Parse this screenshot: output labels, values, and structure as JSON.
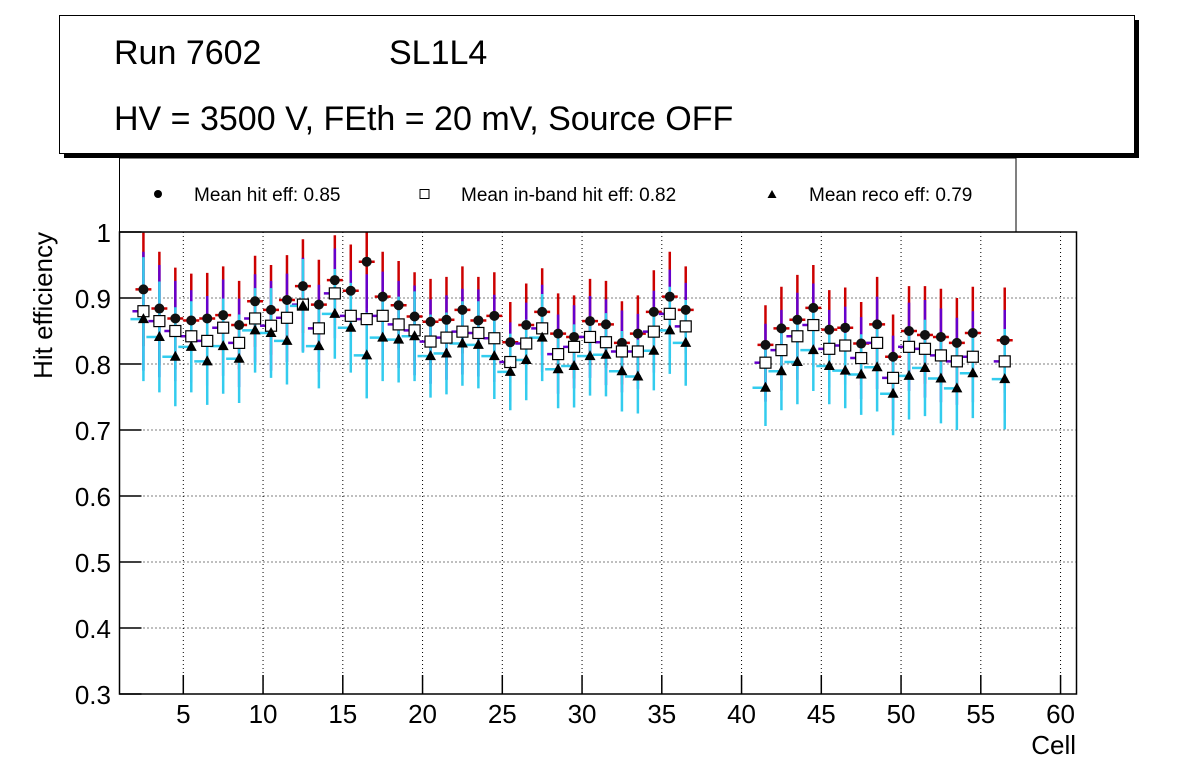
{
  "title_box": {
    "run_label": "Run 7602",
    "layer_label": "SL1L4",
    "conditions": "HV = 3500 V, FEth = 20 mV, Source OFF"
  },
  "legend": {
    "entries": [
      {
        "marker": "filled-circle",
        "label": "Mean hit  eff: 0.85"
      },
      {
        "marker": "open-square",
        "label": "Mean in-band hit eff: 0.82"
      },
      {
        "marker": "filled-triangle",
        "label": "Mean reco eff: 0.79"
      }
    ]
  },
  "chart_data": {
    "type": "scatter",
    "title": "Run 7602 SL1L4 — HV = 3500 V, FEth = 20 mV, Source OFF",
    "xlabel": "Cell",
    "ylabel": "Hit efficiency",
    "xlim": [
      1,
      61
    ],
    "ylim": [
      0.3,
      1.0
    ],
    "xticks": [
      5,
      10,
      15,
      20,
      25,
      30,
      35,
      40,
      45,
      50,
      55,
      60
    ],
    "yticks": [
      0.3,
      0.4,
      0.5,
      0.6,
      0.7,
      0.8,
      0.9,
      1.0
    ],
    "ytick_labels": [
      "0.3",
      "0.4",
      "0.5",
      "0.6",
      "0.7",
      "0.8",
      "0.9",
      "1"
    ],
    "grid": true,
    "legend_position": "top",
    "x_offset_note": "points plotted at cell + 0.5",
    "x": [
      2,
      3,
      4,
      5,
      6,
      7,
      8,
      9,
      10,
      11,
      12,
      13,
      14,
      15,
      16,
      17,
      18,
      19,
      20,
      21,
      22,
      23,
      24,
      25,
      26,
      27,
      28,
      29,
      30,
      31,
      32,
      33,
      34,
      35,
      36,
      41,
      42,
      43,
      44,
      45,
      46,
      47,
      48,
      49,
      50,
      51,
      52,
      53,
      54,
      56
    ],
    "series": [
      {
        "name": "Mean hit  eff: 0.85",
        "marker": "filled-circle",
        "color": "#cc0000",
        "values": [
          0.913,
          0.884,
          0.869,
          0.866,
          0.869,
          0.874,
          0.859,
          0.895,
          0.882,
          0.897,
          0.918,
          0.89,
          0.927,
          0.911,
          0.955,
          0.902,
          0.889,
          0.872,
          0.864,
          0.867,
          0.882,
          0.866,
          0.873,
          0.833,
          0.859,
          0.879,
          0.846,
          0.841,
          0.865,
          0.86,
          0.832,
          0.846,
          0.879,
          0.902,
          0.882,
          0.829,
          0.854,
          0.867,
          0.885,
          0.852,
          0.855,
          0.831,
          0.86,
          0.811,
          0.85,
          0.844,
          0.841,
          0.832,
          0.847,
          0.836
        ],
        "errors": [
          0.086,
          0.086,
          0.077,
          0.071,
          0.069,
          0.074,
          0.067,
          0.069,
          0.068,
          0.068,
          0.071,
          0.068,
          0.068,
          0.07,
          0.07,
          0.068,
          0.067,
          0.067,
          0.065,
          0.065,
          0.066,
          0.066,
          0.066,
          0.061,
          0.063,
          0.066,
          0.061,
          0.063,
          0.064,
          0.066,
          0.063,
          0.058,
          0.063,
          0.068,
          0.066,
          0.06,
          0.063,
          0.068,
          0.065,
          0.06,
          0.061,
          0.063,
          0.072,
          0.064,
          0.068,
          0.074,
          0.073,
          0.068,
          0.07,
          0.08
        ]
      },
      {
        "name": "Mean in-band hit eff: 0.82",
        "marker": "open-square",
        "color": "#6600cc",
        "values": [
          0.88,
          0.865,
          0.85,
          0.842,
          0.835,
          0.855,
          0.832,
          0.869,
          0.858,
          0.87,
          0.89,
          0.854,
          0.907,
          0.873,
          0.868,
          0.873,
          0.86,
          0.851,
          0.834,
          0.84,
          0.849,
          0.847,
          0.839,
          0.803,
          0.831,
          0.854,
          0.815,
          0.826,
          0.841,
          0.833,
          0.819,
          0.819,
          0.849,
          0.876,
          0.857,
          0.802,
          0.821,
          0.842,
          0.859,
          0.823,
          0.828,
          0.809,
          0.832,
          0.779,
          0.826,
          0.823,
          0.813,
          0.804,
          0.811,
          0.804
        ],
        "errors": [
          0.09,
          0.085,
          0.076,
          0.07,
          0.068,
          0.073,
          0.067,
          0.067,
          0.068,
          0.067,
          0.071,
          0.066,
          0.068,
          0.069,
          0.068,
          0.067,
          0.066,
          0.068,
          0.064,
          0.064,
          0.065,
          0.066,
          0.066,
          0.06,
          0.062,
          0.066,
          0.06,
          0.063,
          0.062,
          0.065,
          0.062,
          0.057,
          0.062,
          0.067,
          0.066,
          0.059,
          0.061,
          0.066,
          0.063,
          0.059,
          0.059,
          0.062,
          0.07,
          0.064,
          0.067,
          0.074,
          0.071,
          0.066,
          0.069,
          0.078
        ]
      },
      {
        "name": "Mean reco eff: 0.79",
        "marker": "filled-triangle",
        "color": "#33ccee",
        "values": [
          0.868,
          0.841,
          0.811,
          0.826,
          0.804,
          0.827,
          0.808,
          0.851,
          0.847,
          0.835,
          0.888,
          0.827,
          0.876,
          0.855,
          0.813,
          0.84,
          0.837,
          0.842,
          0.812,
          0.816,
          0.831,
          0.829,
          0.812,
          0.788,
          0.806,
          0.84,
          0.792,
          0.797,
          0.812,
          0.814,
          0.789,
          0.781,
          0.82,
          0.851,
          0.832,
          0.764,
          0.789,
          0.803,
          0.821,
          0.797,
          0.79,
          0.784,
          0.795,
          0.755,
          0.782,
          0.794,
          0.778,
          0.763,
          0.786,
          0.777
        ],
        "errors": [
          0.094,
          0.084,
          0.075,
          0.069,
          0.066,
          0.072,
          0.067,
          0.064,
          0.068,
          0.066,
          0.071,
          0.064,
          0.068,
          0.068,
          0.065,
          0.066,
          0.065,
          0.068,
          0.063,
          0.062,
          0.064,
          0.066,
          0.065,
          0.058,
          0.061,
          0.066,
          0.059,
          0.063,
          0.06,
          0.063,
          0.061,
          0.056,
          0.06,
          0.066,
          0.065,
          0.058,
          0.059,
          0.064,
          0.062,
          0.058,
          0.057,
          0.061,
          0.067,
          0.063,
          0.066,
          0.073,
          0.068,
          0.063,
          0.068,
          0.076
        ]
      }
    ]
  }
}
